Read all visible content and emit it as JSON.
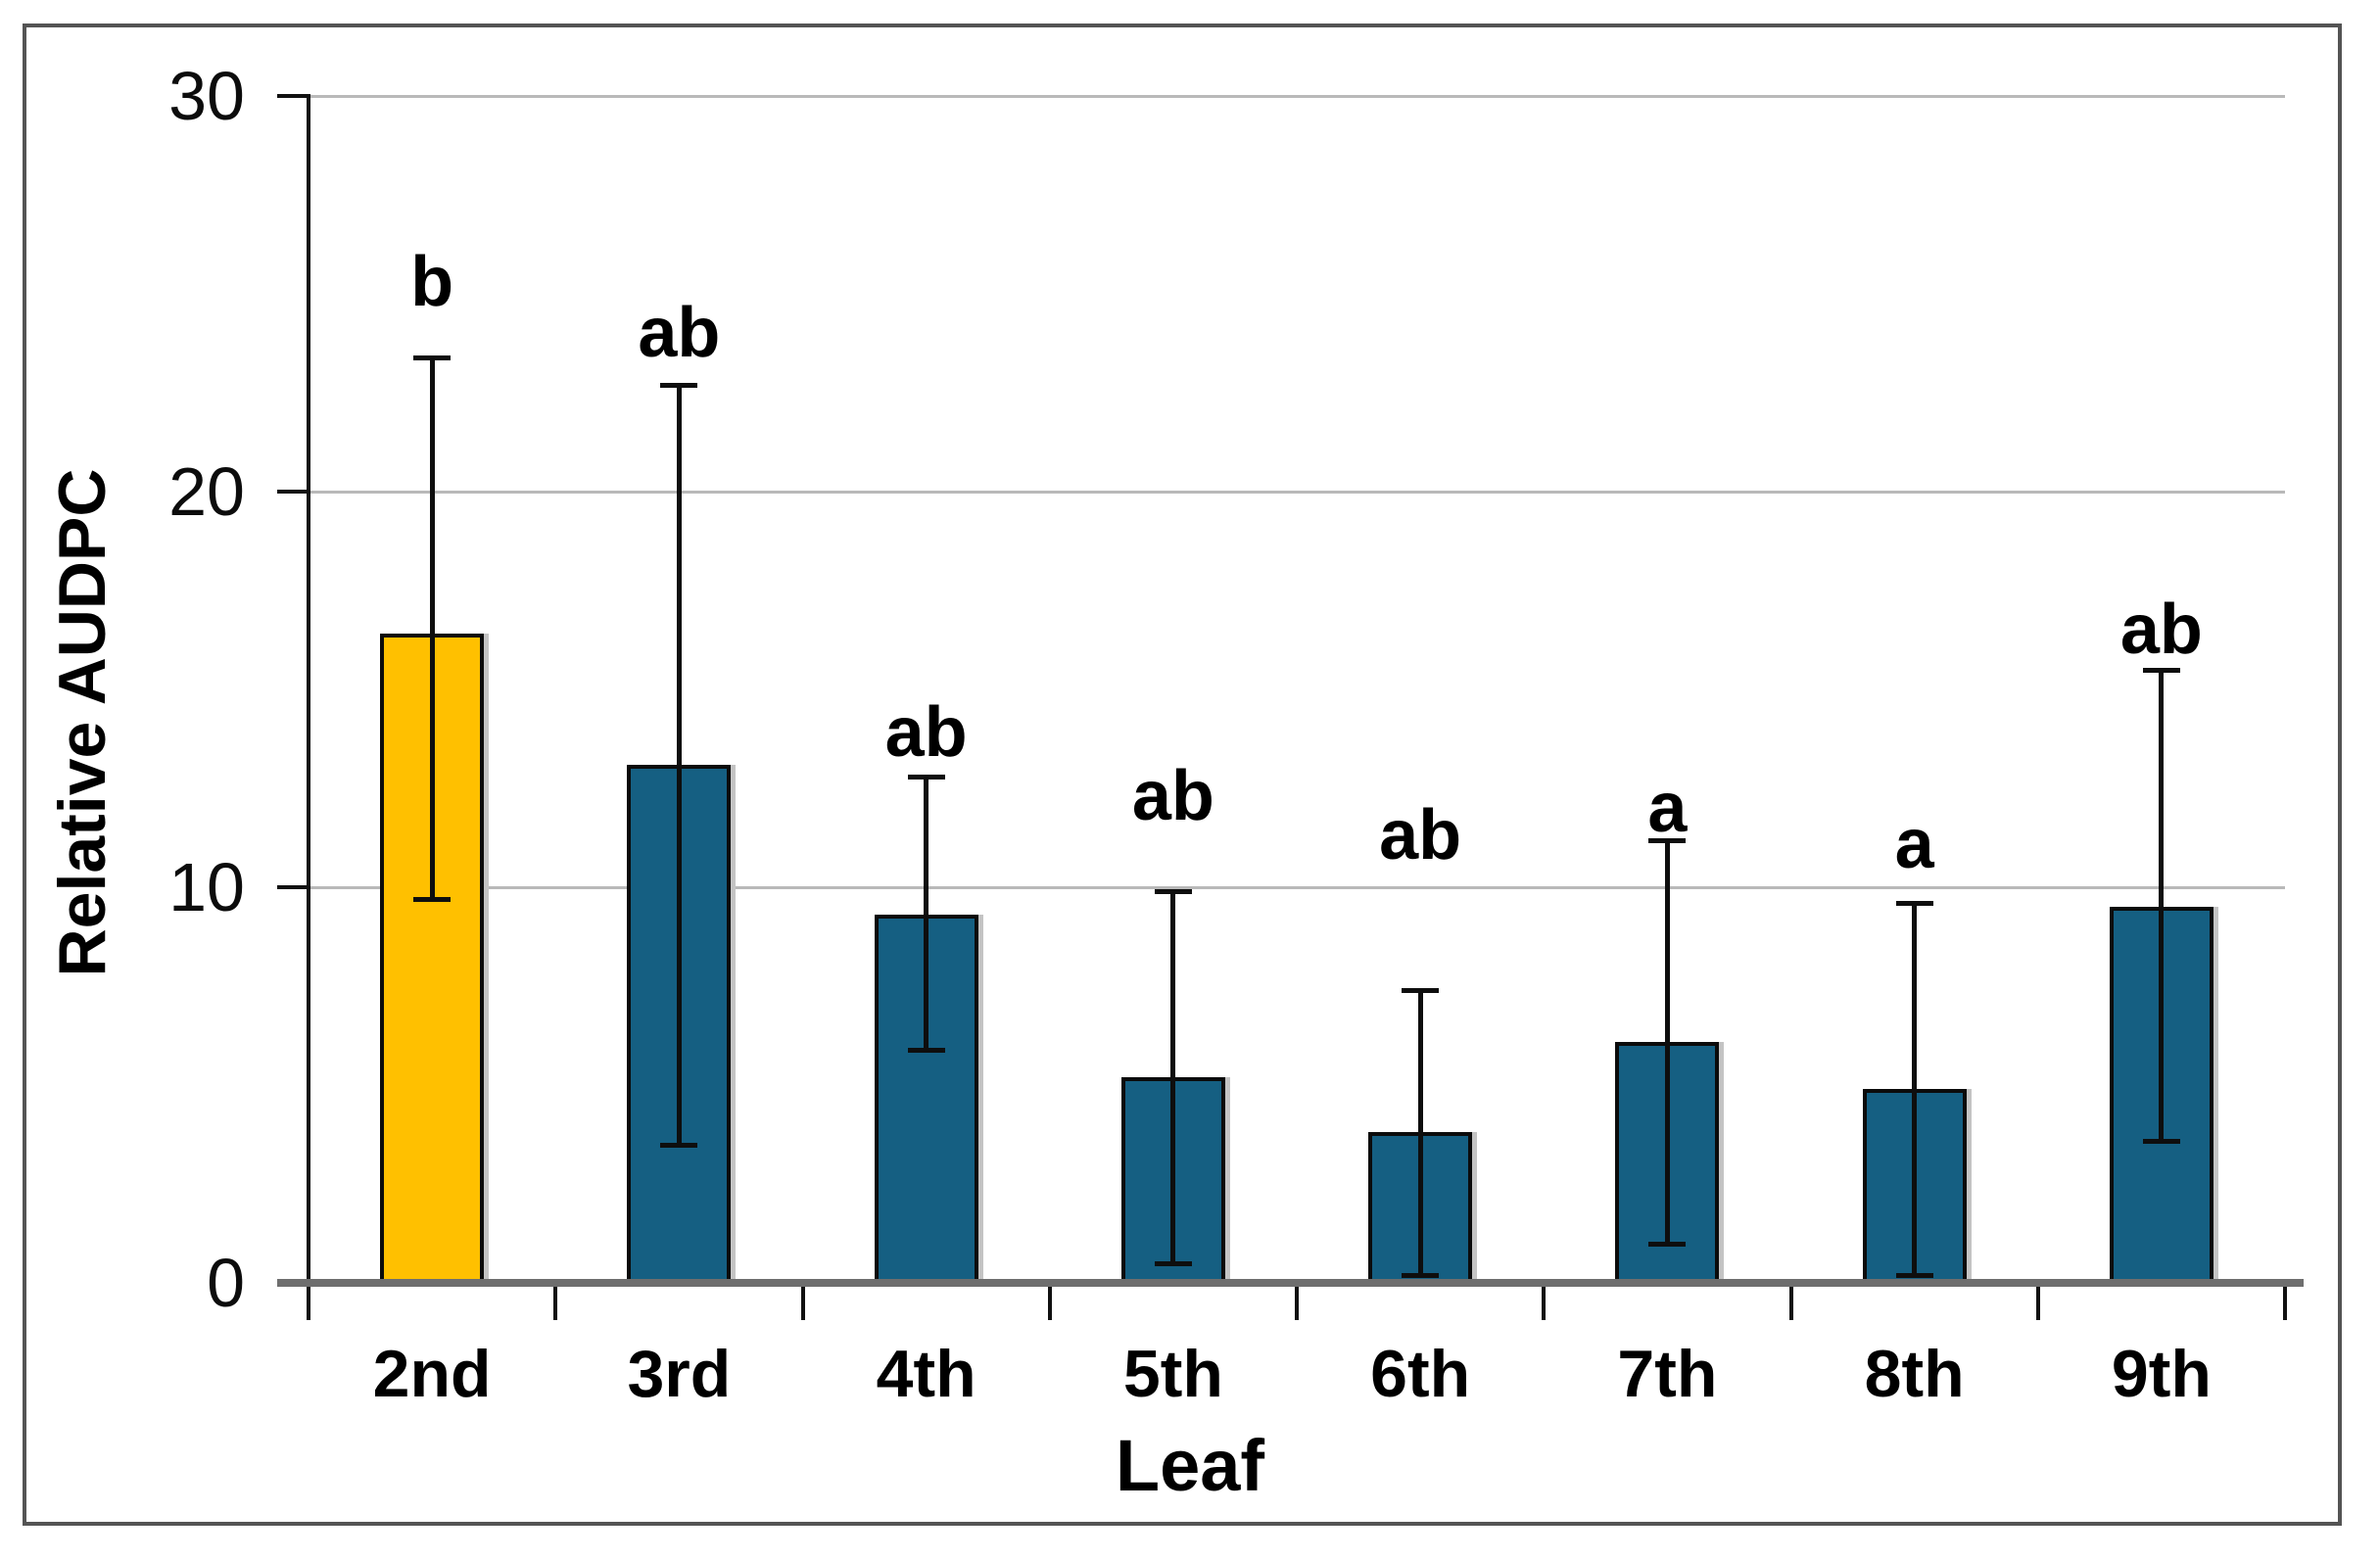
{
  "figure": {
    "background_color": "#ffffff",
    "frame_color": "#545454",
    "gridline_color": "#b9b9b9",
    "baseline_color": "#6e6e6e"
  },
  "chart_data": {
    "type": "bar",
    "title": "",
    "xlabel": "Leaf",
    "ylabel": "Relative AUDPC",
    "ylim": [
      0,
      30
    ],
    "yticks": [
      0,
      10,
      20,
      30
    ],
    "grid": "horizontal",
    "legend": "none",
    "categories": [
      "2nd",
      "3rd",
      "4th",
      "5th",
      "6th",
      "7th",
      "8th",
      "9th"
    ],
    "values": [
      16.4,
      13.1,
      9.3,
      5.2,
      3.8,
      6.1,
      4.9,
      9.5
    ],
    "error_low": [
      9.7,
      3.5,
      5.9,
      0.5,
      0.2,
      1.0,
      0.2,
      3.6
    ],
    "error_high": [
      23.4,
      22.7,
      12.8,
      9.9,
      7.4,
      11.2,
      9.6,
      15.5
    ],
    "sig_letters": [
      "b",
      "ab",
      "ab",
      "ab",
      "ab",
      "a",
      "a",
      "ab"
    ],
    "sig_letter_y": [
      25.3,
      24.0,
      13.9,
      12.3,
      11.3,
      12.0,
      11.1,
      16.5
    ],
    "bar_colors": [
      "#FFC000",
      "#155F82",
      "#155F82",
      "#155F82",
      "#155F82",
      "#155F82",
      "#155F82",
      "#155F82"
    ],
    "highlight_color": "#FFC000",
    "series_color": "#155F82",
    "bar_border_color": "#0b0b0b",
    "error_bar_color": "#0e0e0e"
  }
}
